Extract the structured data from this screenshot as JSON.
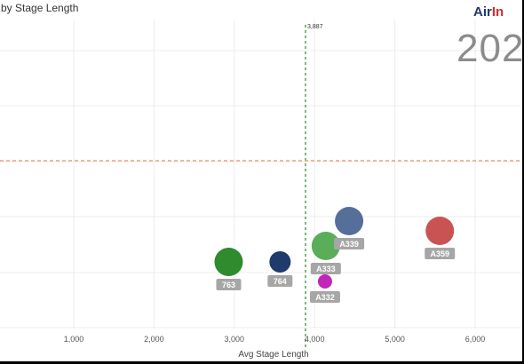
{
  "header": {
    "title": "by Stage Length",
    "logo_part1": "Air",
    "logo_part2": "In",
    "year": "202"
  },
  "chart_data": {
    "type": "scatter",
    "xlabel": "Avg Stage Length",
    "xlim": [
      0,
      6600
    ],
    "x_ticks": [
      1000,
      2000,
      3000,
      4000,
      5000,
      6000
    ],
    "x_tick_labels": [
      "1,000",
      "2,000",
      "3,000",
      "4,000",
      "5,000",
      "6,000"
    ],
    "reference_lines": {
      "vertical": {
        "value": 3887,
        "label": "3,887",
        "color": "#5aa85a"
      },
      "horizontal": {
        "color": "#f0a07a"
      }
    },
    "grid": true,
    "points": [
      {
        "label": "763",
        "x": 2930,
        "color": "#2e8b2e",
        "size": "large"
      },
      {
        "label": "764",
        "x": 3570,
        "color": "#1f3a6b",
        "size": "medium"
      },
      {
        "label": "A333",
        "x": 4140,
        "color": "#5aae5a",
        "size": "large"
      },
      {
        "label": "A339",
        "x": 4430,
        "color": "#566e9a",
        "size": "large"
      },
      {
        "label": "A332",
        "x": 4130,
        "color": "#c026b8",
        "size": "small"
      },
      {
        "label": "A359",
        "x": 5560,
        "color": "#c95353",
        "size": "large"
      }
    ]
  }
}
